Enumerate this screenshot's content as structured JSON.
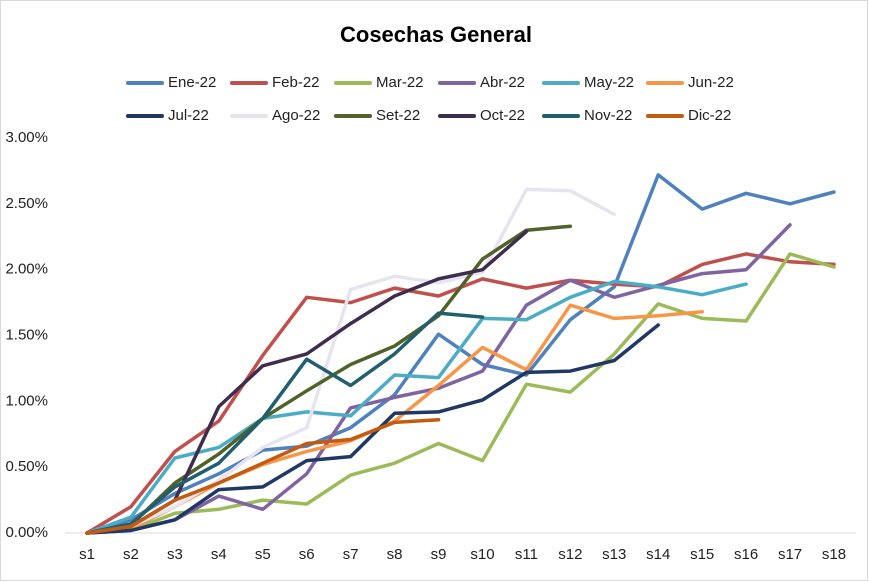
{
  "chart_data": {
    "type": "line",
    "title": "Cosechas General",
    "categories": [
      "s1",
      "s2",
      "s3",
      "s4",
      "s5",
      "s6",
      "s7",
      "s8",
      "s9",
      "s10",
      "s11",
      "s12",
      "s13",
      "s14",
      "s15",
      "s16",
      "s17",
      "s18"
    ],
    "ylim": [
      0,
      3
    ],
    "yticks": [
      {
        "value": 0,
        "label": "0.00%"
      },
      {
        "value": 0.5,
        "label": "0.50%"
      },
      {
        "value": 1,
        "label": "1.00%"
      },
      {
        "value": 1.5,
        "label": "1.50%"
      },
      {
        "value": 2,
        "label": "2.00%"
      },
      {
        "value": 2.5,
        "label": "2.50%"
      },
      {
        "value": 3,
        "label": "3.00%"
      }
    ],
    "grid": false,
    "legend": "top",
    "series": [
      {
        "name": "Ene-22",
        "color": "#4f81bd",
        "values": [
          0,
          0.1,
          0.3,
          0.45,
          0.63,
          0.66,
          0.8,
          1.05,
          1.51,
          1.28,
          1.2,
          1.62,
          1.87,
          2.72,
          2.46,
          2.58,
          2.5,
          2.59
        ]
      },
      {
        "name": "Feb-22",
        "color": "#c0504d",
        "values": [
          0,
          0.2,
          0.62,
          0.85,
          1.35,
          1.79,
          1.75,
          1.86,
          1.8,
          1.93,
          1.86,
          1.92,
          1.89,
          1.87,
          2.04,
          2.12,
          2.06,
          2.04
        ]
      },
      {
        "name": "Mar-22",
        "color": "#9bbb59",
        "values": [
          0,
          0.02,
          0.15,
          0.18,
          0.25,
          0.22,
          0.44,
          0.53,
          0.68,
          0.55,
          1.13,
          1.07,
          1.36,
          1.74,
          1.63,
          1.61,
          2.12,
          2.02
        ]
      },
      {
        "name": "Abr-22",
        "color": "#8064a2",
        "values": [
          0,
          0.02,
          0.1,
          0.28,
          0.18,
          0.45,
          0.95,
          1.03,
          1.1,
          1.23,
          1.73,
          1.92,
          1.79,
          1.88,
          1.97,
          2.0,
          2.34,
          null
        ]
      },
      {
        "name": "May-22",
        "color": "#4bacc6",
        "values": [
          0,
          0.12,
          0.57,
          0.65,
          0.87,
          0.92,
          0.89,
          1.2,
          1.18,
          1.63,
          1.62,
          1.79,
          1.91,
          1.87,
          1.81,
          1.89,
          null,
          null
        ]
      },
      {
        "name": "Jun-22",
        "color": "#f79646",
        "values": [
          0,
          0.03,
          0.2,
          0.38,
          0.52,
          0.62,
          0.7,
          0.85,
          1.12,
          1.41,
          1.24,
          1.73,
          1.63,
          1.65,
          1.68,
          null,
          null,
          null
        ]
      },
      {
        "name": "Jul-22",
        "color": "#1f3864",
        "values": [
          0,
          0.02,
          0.1,
          0.33,
          0.35,
          0.55,
          0.58,
          0.91,
          0.92,
          1.01,
          1.22,
          1.23,
          1.31,
          1.58,
          null,
          null,
          null,
          null
        ]
      },
      {
        "name": "Ago-22",
        "color": "#e6e4ee",
        "values": [
          0,
          0.05,
          0.2,
          0.4,
          0.65,
          0.8,
          1.85,
          1.95,
          1.9,
          1.98,
          2.61,
          2.6,
          2.42,
          null,
          null,
          null,
          null,
          null
        ]
      },
      {
        "name": "Set-22",
        "color": "#4f6228",
        "values": [
          0,
          0.06,
          0.38,
          0.6,
          0.87,
          1.08,
          1.28,
          1.42,
          1.65,
          2.08,
          2.3,
          2.33,
          null,
          null,
          null,
          null,
          null,
          null
        ]
      },
      {
        "name": "Oct-22",
        "color": "#3f2d4e",
        "values": [
          0,
          0.05,
          0.25,
          0.96,
          1.27,
          1.36,
          1.59,
          1.8,
          1.93,
          2.0,
          2.29,
          null,
          null,
          null,
          null,
          null,
          null,
          null
        ]
      },
      {
        "name": "Nov-22",
        "color": "#215f6e",
        "values": [
          0,
          0.07,
          0.35,
          0.53,
          0.87,
          1.32,
          1.12,
          1.36,
          1.67,
          1.64,
          null,
          null,
          null,
          null,
          null,
          null,
          null,
          null
        ]
      },
      {
        "name": "Dic-22",
        "color": "#c55a11",
        "values": [
          0,
          0.05,
          0.25,
          0.38,
          0.53,
          0.68,
          0.71,
          0.84,
          0.86,
          null,
          null,
          null,
          null,
          null,
          null,
          null,
          null,
          null
        ]
      }
    ]
  }
}
